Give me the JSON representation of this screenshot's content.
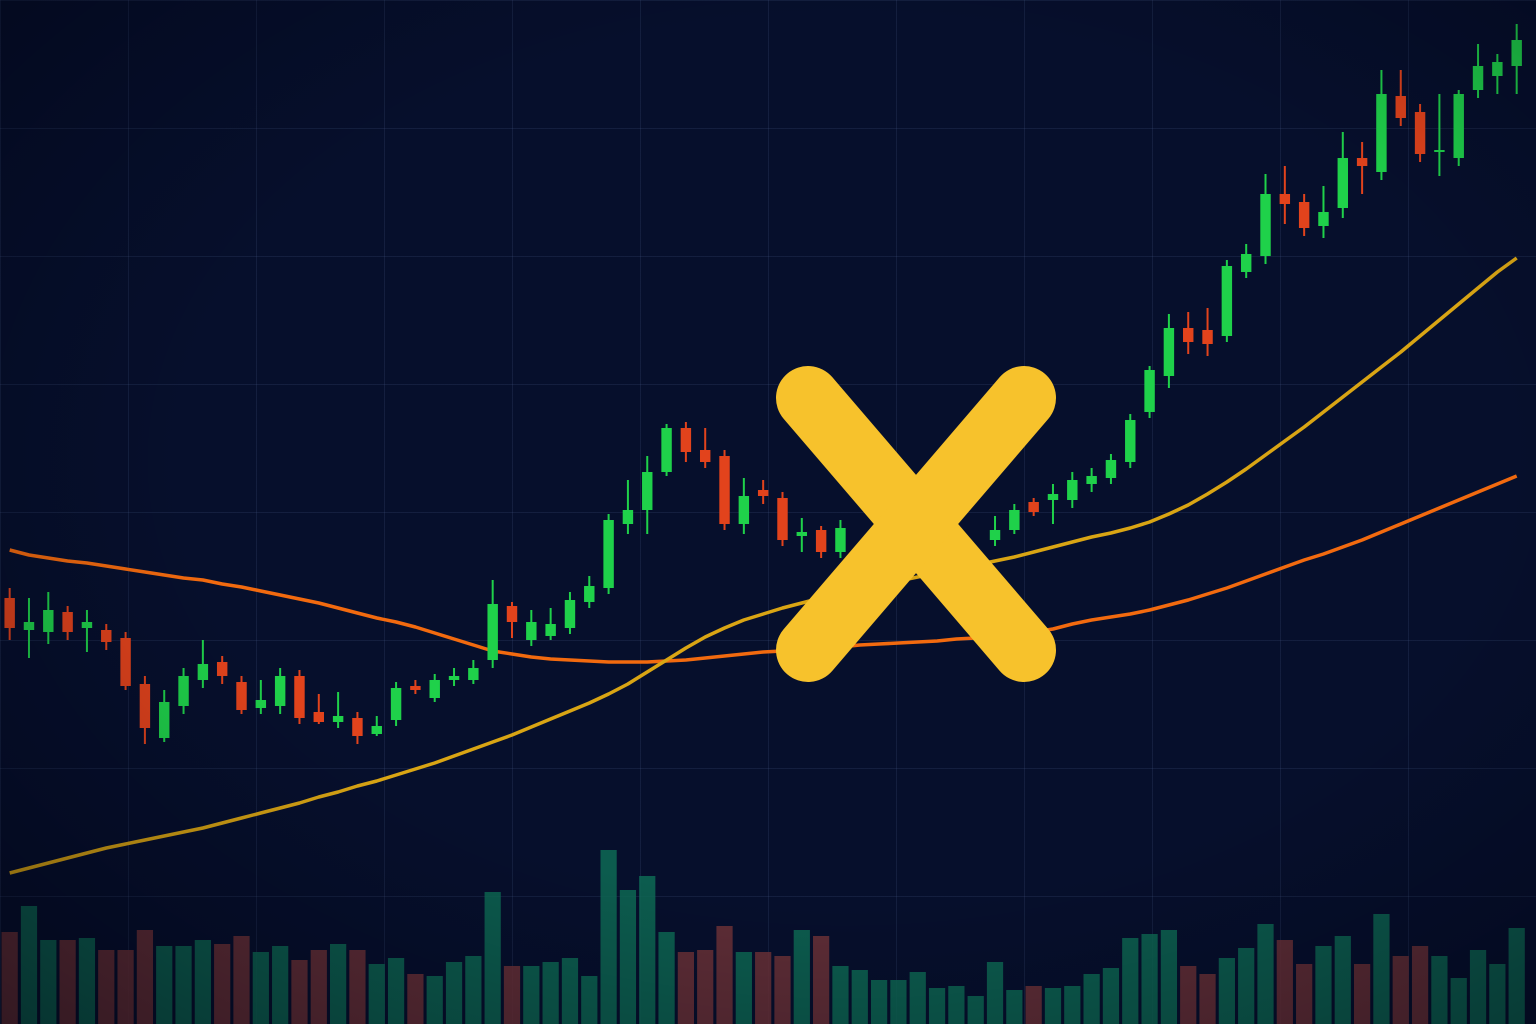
{
  "chart_data": {
    "type": "candlestick",
    "categories": [
      null,
      null,
      null,
      null,
      null,
      null,
      null,
      null,
      null,
      null,
      null,
      null,
      null,
      null,
      null,
      null,
      null,
      null,
      null,
      null,
      null,
      null,
      null,
      null,
      null,
      null,
      null,
      null,
      null,
      null,
      null,
      null,
      null,
      null,
      null,
      null,
      null,
      null,
      null,
      null,
      null,
      null,
      null,
      null,
      null,
      null,
      null,
      null,
      null,
      null,
      null,
      null,
      null,
      null,
      null,
      null,
      null,
      null,
      null,
      null,
      null,
      null,
      null,
      null,
      null,
      null,
      null,
      null,
      null,
      null,
      null,
      null,
      null,
      null,
      null,
      null,
      null,
      null,
      null
    ],
    "open": [
      426,
      394,
      392,
      412,
      396,
      394,
      386,
      340,
      286,
      318,
      344,
      362,
      342,
      316,
      318,
      348,
      312,
      302,
      306,
      290,
      304,
      338,
      326,
      344,
      344,
      364,
      418,
      384,
      388,
      396,
      422,
      436,
      500,
      514,
      552,
      596,
      574,
      568,
      500,
      534,
      526,
      488,
      494,
      472,
      null,
      null,
      null,
      null,
      null,
      null,
      null,
      484,
      494,
      522,
      524,
      524,
      540,
      546,
      562,
      612,
      648,
      696,
      694,
      688,
      752,
      768,
      830,
      822,
      798,
      816,
      866,
      852,
      928,
      912,
      872,
      866,
      934,
      948,
      958
    ],
    "high": [
      436,
      426,
      432,
      418,
      414,
      400,
      392,
      348,
      334,
      356,
      384,
      368,
      348,
      344,
      356,
      354,
      330,
      332,
      312,
      308,
      342,
      344,
      350,
      356,
      364,
      444,
      422,
      414,
      416,
      432,
      448,
      510,
      544,
      568,
      600,
      602,
      596,
      574,
      546,
      544,
      532,
      506,
      498,
      504,
      null,
      null,
      null,
      null,
      null,
      null,
      null,
      508,
      520,
      526,
      540,
      552,
      556,
      570,
      610,
      658,
      710,
      712,
      716,
      764,
      780,
      850,
      858,
      830,
      838,
      892,
      882,
      954,
      954,
      920,
      930,
      934,
      980,
      970,
      1000
    ],
    "low": [
      384,
      366,
      380,
      384,
      372,
      374,
      334,
      280,
      282,
      310,
      336,
      340,
      310,
      310,
      310,
      300,
      300,
      296,
      280,
      288,
      298,
      330,
      322,
      338,
      340,
      356,
      386,
      378,
      384,
      390,
      416,
      430,
      490,
      490,
      548,
      562,
      556,
      494,
      490,
      520,
      478,
      472,
      466,
      466,
      null,
      null,
      null,
      null,
      null,
      null,
      null,
      478,
      490,
      508,
      500,
      516,
      532,
      540,
      556,
      606,
      636,
      670,
      668,
      682,
      746,
      760,
      800,
      788,
      786,
      806,
      830,
      844,
      898,
      862,
      848,
      858,
      926,
      930,
      930
    ],
    "close": [
      396,
      402,
      414,
      392,
      402,
      382,
      338,
      296,
      322,
      348,
      360,
      348,
      314,
      324,
      348,
      306,
      302,
      308,
      288,
      298,
      336,
      334,
      344,
      348,
      356,
      420,
      402,
      402,
      400,
      424,
      438,
      504,
      514,
      552,
      596,
      572,
      562,
      500,
      528,
      528,
      484,
      492,
      472,
      496,
      null,
      null,
      null,
      null,
      null,
      null,
      null,
      494,
      514,
      512,
      530,
      544,
      548,
      564,
      604,
      654,
      696,
      682,
      680,
      758,
      770,
      830,
      820,
      796,
      812,
      866,
      858,
      930,
      906,
      870,
      874,
      930,
      958,
      962,
      984
    ],
    "volume": [
      92,
      118,
      84,
      84,
      86,
      74,
      74,
      94,
      78,
      78,
      84,
      80,
      88,
      72,
      78,
      64,
      74,
      80,
      74,
      60,
      66,
      50,
      48,
      62,
      68,
      132,
      58,
      58,
      62,
      66,
      48,
      174,
      134,
      148,
      92,
      72,
      74,
      98,
      72,
      72,
      68,
      94,
      88,
      58,
      54,
      44,
      44,
      52,
      36,
      38,
      28,
      62,
      34,
      38,
      36,
      38,
      50,
      56,
      86,
      90,
      94,
      58,
      50,
      66,
      76,
      100,
      84,
      60,
      78,
      88,
      60,
      110,
      68,
      78,
      68,
      46,
      74,
      60,
      96
    ],
    "series": [
      {
        "color": "#f26a0f",
        "values": [
          474,
          469,
          466,
          463,
          461,
          458,
          455,
          452,
          449,
          446,
          444,
          440,
          437,
          433,
          429,
          425,
          421,
          416,
          411,
          406,
          402,
          397,
          391,
          385,
          379,
          373,
          370,
          367,
          365,
          364,
          363,
          362,
          362,
          362,
          363,
          364,
          366,
          368,
          370,
          372,
          373,
          374,
          376,
          377,
          379,
          380,
          381,
          382,
          383,
          385,
          386,
          388,
          390,
          392,
          395,
          400,
          404,
          407,
          410,
          414,
          419,
          424,
          430,
          436,
          443,
          450,
          457,
          464,
          470,
          477,
          484,
          492,
          500,
          508,
          516,
          524,
          532,
          540,
          548
        ]
      },
      {
        "color": "#d9a514",
        "values": [
          151,
          156,
          161,
          166,
          171,
          176,
          180,
          184,
          188,
          192,
          196,
          201,
          206,
          211,
          216,
          221,
          227,
          232,
          238,
          243,
          249,
          255,
          261,
          268,
          275,
          282,
          289,
          297,
          305,
          313,
          321,
          330,
          340,
          352,
          364,
          376,
          387,
          396,
          404,
          410,
          416,
          421,
          426,
          430,
          435,
          439,
          443,
          447,
          451,
          455,
          459,
          463,
          467,
          472,
          477,
          482,
          487,
          491,
          496,
          502,
          510,
          519,
          530,
          542,
          555,
          569,
          583,
          597,
          612,
          627,
          642,
          657,
          672,
          688,
          704,
          720,
          736,
          752,
          766
        ]
      }
    ],
    "up_color": "#1fd14a",
    "down_color": "#e2431c",
    "volume_up_color": "#0e6a55",
    "volume_down_color": "#6e3238",
    "ylim": [
      0,
      1024
    ]
  }
}
